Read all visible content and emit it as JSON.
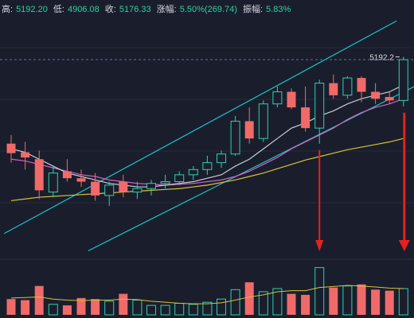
{
  "header": {
    "high_label": "高:",
    "high_value": "5192.20",
    "low_label": "低:",
    "low_value": "4906.08",
    "close_label": "收:",
    "close_value": "5176.33",
    "change_label": "涨幅:",
    "change_value": "5.50%(269.74)",
    "amp_label": "振幅:",
    "amp_value": "5.83%"
  },
  "colors": {
    "background": "#1a1e2c",
    "up": "#2fd0b0",
    "down": "#f06a6a",
    "channel": "#1fc4c4",
    "ma_fast": "#c8ccd6",
    "ma_mid": "#d860c8",
    "ma_slow": "#d8c23a",
    "arrow": "#e82020",
    "price_line": "#5a6fa8"
  },
  "chart_data": {
    "type": "candlestick",
    "last_price_label": "5192.2",
    "ylim": [
      4040,
      5420
    ],
    "candles": [
      {
        "o": 4690,
        "h": 4740,
        "l": 4580,
        "c": 4635
      },
      {
        "o": 4640,
        "h": 4700,
        "l": 4540,
        "c": 4610
      },
      {
        "o": 4600,
        "h": 4650,
        "l": 4370,
        "c": 4420
      },
      {
        "o": 4410,
        "h": 4560,
        "l": 4380,
        "c": 4520
      },
      {
        "o": 4530,
        "h": 4600,
        "l": 4470,
        "c": 4490
      },
      {
        "o": 4490,
        "h": 4540,
        "l": 4440,
        "c": 4470
      },
      {
        "o": 4470,
        "h": 4520,
        "l": 4360,
        "c": 4390
      },
      {
        "o": 4390,
        "h": 4470,
        "l": 4330,
        "c": 4450
      },
      {
        "o": 4470,
        "h": 4510,
        "l": 4380,
        "c": 4410
      },
      {
        "o": 4410,
        "h": 4470,
        "l": 4370,
        "c": 4430
      },
      {
        "o": 4430,
        "h": 4480,
        "l": 4390,
        "c": 4460
      },
      {
        "o": 4460,
        "h": 4510,
        "l": 4430,
        "c": 4470
      },
      {
        "o": 4470,
        "h": 4530,
        "l": 4450,
        "c": 4510
      },
      {
        "o": 4510,
        "h": 4560,
        "l": 4480,
        "c": 4540
      },
      {
        "o": 4540,
        "h": 4620,
        "l": 4510,
        "c": 4580
      },
      {
        "o": 4580,
        "h": 4650,
        "l": 4550,
        "c": 4630
      },
      {
        "o": 4630,
        "h": 4850,
        "l": 4620,
        "c": 4820
      },
      {
        "o": 4820,
        "h": 4900,
        "l": 4690,
        "c": 4720
      },
      {
        "o": 4720,
        "h": 4940,
        "l": 4700,
        "c": 4920
      },
      {
        "o": 4920,
        "h": 5020,
        "l": 4900,
        "c": 4990
      },
      {
        "o": 4990,
        "h": 5010,
        "l": 4890,
        "c": 4900
      },
      {
        "o": 4900,
        "h": 5020,
        "l": 4760,
        "c": 4780
      },
      {
        "o": 4780,
        "h": 5060,
        "l": 4690,
        "c": 5040
      },
      {
        "o": 5040,
        "h": 5090,
        "l": 4950,
        "c": 4970
      },
      {
        "o": 4970,
        "h": 5080,
        "l": 4950,
        "c": 5070
      },
      {
        "o": 5070,
        "h": 5080,
        "l": 4930,
        "c": 4990
      },
      {
        "o": 4990,
        "h": 5040,
        "l": 4920,
        "c": 4950
      },
      {
        "o": 4960,
        "h": 4990,
        "l": 4920,
        "c": 4940
      },
      {
        "o": 4940,
        "h": 5192,
        "l": 4906,
        "c": 5176
      }
    ],
    "ma_fast": [
      4660,
      4640,
      4600,
      4560,
      4520,
      4500,
      4480,
      4460,
      4450,
      4440,
      4440,
      4450,
      4460,
      4470,
      4490,
      4510,
      4560,
      4600,
      4660,
      4720,
      4780,
      4810,
      4850,
      4880,
      4920,
      4950,
      4970,
      4990,
      5030
    ],
    "ma_mid": [
      4600,
      4590,
      4570,
      4550,
      4530,
      4510,
      4500,
      4480,
      4470,
      4460,
      4455,
      4450,
      4455,
      4460,
      4470,
      4480,
      4500,
      4530,
      4570,
      4610,
      4660,
      4700,
      4740,
      4780,
      4830,
      4870,
      4900,
      4920,
      4950
    ],
    "ma_slow": [
      4360,
      4370,
      4380,
      4385,
      4390,
      4395,
      4400,
      4405,
      4410,
      4415,
      4420,
      4425,
      4430,
      4440,
      4450,
      4465,
      4480,
      4500,
      4520,
      4545,
      4570,
      4595,
      4615,
      4635,
      4655,
      4670,
      4685,
      4700,
      4720
    ],
    "channel": {
      "upper": {
        "start": [
          -0.5,
          4170
        ],
        "end": [
          27.5,
          5400
        ]
      },
      "lower": {
        "start": [
          5.5,
          4070
        ],
        "end": [
          29.5,
          5050
        ]
      }
    },
    "volume": [
      30,
      28,
      55,
      20,
      18,
      32,
      30,
      26,
      40,
      28,
      18,
      18,
      22,
      20,
      24,
      30,
      48,
      62,
      44,
      50,
      40,
      38,
      90,
      52,
      55,
      58,
      48,
      46,
      50
    ],
    "volume_ma": [
      32,
      33,
      34,
      30,
      28,
      27,
      28,
      28,
      30,
      29,
      26,
      24,
      22,
      21,
      21,
      23,
      28,
      34,
      38,
      44,
      46,
      46,
      52,
      54,
      56,
      55,
      53,
      51,
      50
    ],
    "volume_ylim": [
      0,
      100
    ],
    "arrows_at_candles": [
      22,
      28
    ]
  }
}
